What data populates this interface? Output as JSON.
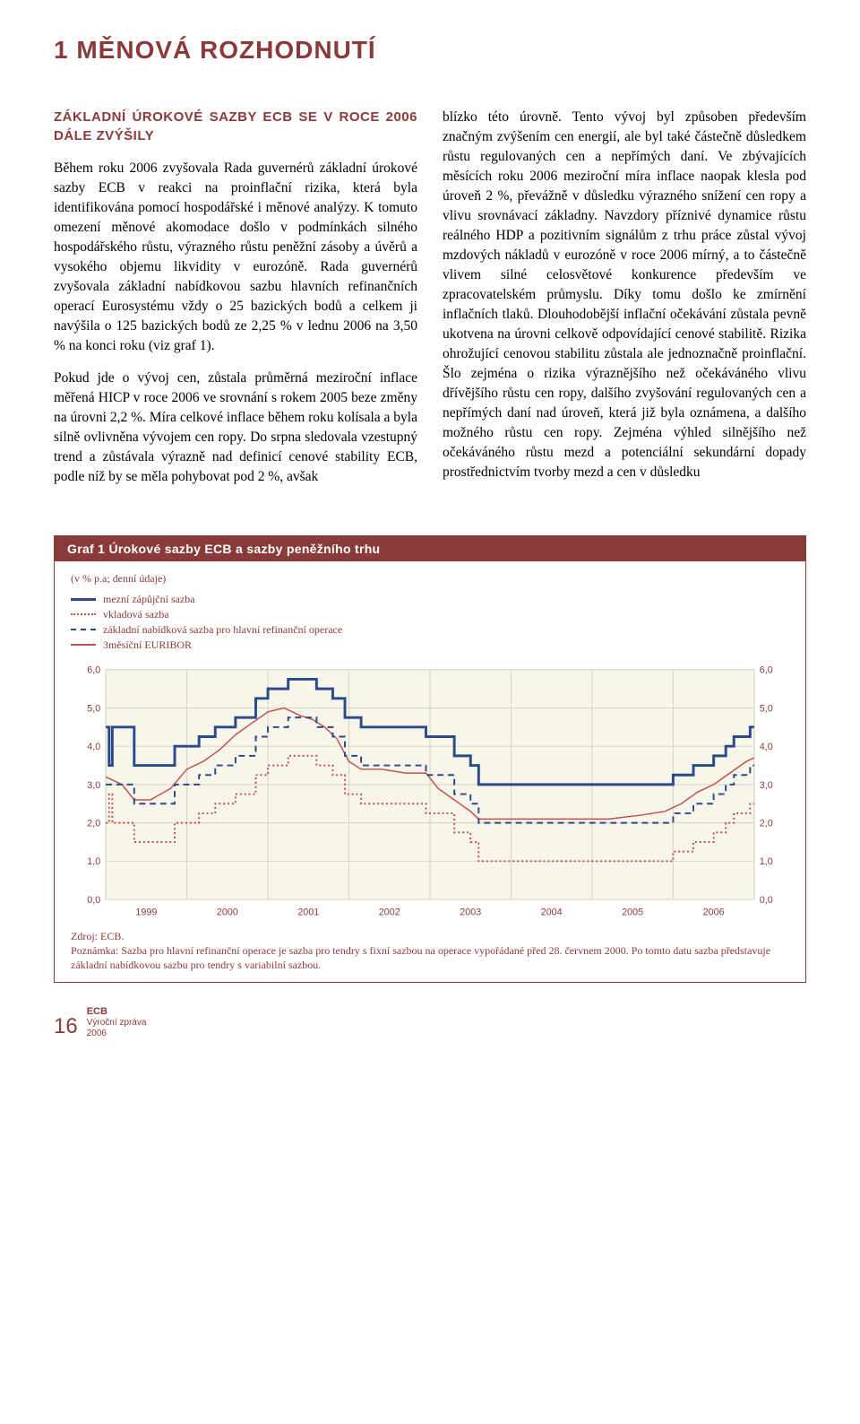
{
  "chapter": {
    "title": "1  MĚNOVÁ ROZHODNUTÍ"
  },
  "subhead": "ZÁKLADNÍ ÚROKOVÉ SAZBY ECB SE V ROCE 2006 DÁLE ZVÝŠILY",
  "col1": {
    "p1": "Během roku 2006 zvyšovala Rada guvernérů základní úrokové sazby ECB v reakci na proinflační rizika, která byla identifikována pomocí hospodářské i měnové analýzy. K tomuto omezení měnové akomodace došlo v podmínkách silného hospodářského růstu, výrazného růstu peněžní zásoby a úvěrů a vysokého objemu likvidity v eurozóně. Rada guvernérů zvyšovala základní nabídkovou sazbu hlavních refinančních operací Eurosystému vždy o 25 bazických bodů a celkem ji navýšila o 125 bazických bodů ze 2,25 % v lednu 2006 na 3,50 % na konci roku (viz graf 1).",
    "p2": "Pokud jde o vývoj cen, zůstala průměrná meziroční inflace měřená HICP v roce 2006 ve srovnání s rokem 2005 beze změny na úrovni 2,2 %. Míra celkové inflace během roku kolísala a byla silně ovlivněna vývojem cen ropy. Do srpna sledovala vzestupný trend a zůstávala výrazně nad definicí cenové stability ECB, podle níž by se měla pohybovat pod 2 %, avšak"
  },
  "col2": {
    "p1": "blízko této úrovně. Tento vývoj byl způsoben především značným zvýšením cen energií, ale byl také částečně důsledkem růstu regulovaných cen a nepřímých daní. Ve zbývajících měsících roku 2006 meziroční míra inflace naopak klesla pod úroveň 2 %, převážně v důsledku výrazného snížení cen ropy a vlivu srovnávací základny. Navzdory příznivé dynamice růstu reálného HDP a pozitivním signálům z trhu práce zůstal vývoj mzdových nákladů v eurozóně v roce 2006 mírný, a to částečně vlivem silné celosvětové konkurence především ve zpracovatelském průmyslu. Díky tomu došlo ke zmírnění inflačních tlaků. Dlouhodobější inflační očekávání zůstala pevně ukotvena na úrovni celkově odpovídající cenové stabilitě. Rizika ohrožující cenovou stabilitu zůstala ale jednoznačně proinflační. Šlo zejména o rizika výraznějšího než očekáváného vlivu dřívějšího růstu cen ropy, dalšího zvyšování regulovaných cen a nepřímých daní nad úroveň, která již byla oznámena, a dalšího možného růstu cen ropy. Zejména výhled silnějšího než očekáváného růstu mezd a potenciální sekundární dopady prostřednictvím tvorby mezd a cen v důsledku"
  },
  "chart": {
    "title": "Graf 1 Úrokové sazby ECB a sazby peněžního trhu",
    "units": "(v % p.a; denní údaje)",
    "legend": [
      {
        "label": "mezní zápůjční sazba",
        "style": "solid-thick",
        "color": "#2a4a8a"
      },
      {
        "label": "vkladová sazba",
        "style": "dotted",
        "color": "#c0504d"
      },
      {
        "label": "základní nabídková sazba pro hlavní refinanční operace",
        "style": "dashed",
        "color": "#2a4a8a"
      },
      {
        "label": "3měsíční EURIBOR",
        "style": "solid-thin",
        "color": "#c0504d"
      }
    ],
    "y_axis": {
      "min": 0.0,
      "max": 6.0,
      "step": 1.0,
      "labels": [
        "0,0",
        "1,0",
        "2,0",
        "3,0",
        "4,0",
        "5,0",
        "6,0"
      ]
    },
    "x_axis": {
      "labels": [
        "1999",
        "2000",
        "2001",
        "2002",
        "2003",
        "2004",
        "2005",
        "2006"
      ]
    },
    "background_color": "#f8f5ea",
    "grid_color": "#d8d4c0",
    "series": {
      "marginal_lending": {
        "color": "#2a4a8a",
        "style": "solid",
        "width": 3,
        "points": [
          [
            0.0,
            4.5
          ],
          [
            0.04,
            3.5
          ],
          [
            0.08,
            4.5
          ],
          [
            0.35,
            3.5
          ],
          [
            0.85,
            4.0
          ],
          [
            1.15,
            4.25
          ],
          [
            1.35,
            4.5
          ],
          [
            1.6,
            4.75
          ],
          [
            1.85,
            5.25
          ],
          [
            2.0,
            5.5
          ],
          [
            2.25,
            5.75
          ],
          [
            2.55,
            5.75
          ],
          [
            2.6,
            5.5
          ],
          [
            2.75,
            5.5
          ],
          [
            2.8,
            5.25
          ],
          [
            2.95,
            4.75
          ],
          [
            3.15,
            4.5
          ],
          [
            3.95,
            4.25
          ],
          [
            4.3,
            3.75
          ],
          [
            4.5,
            3.5
          ],
          [
            4.6,
            3.0
          ],
          [
            5.0,
            3.0
          ],
          [
            7.0,
            3.25
          ],
          [
            7.25,
            3.5
          ],
          [
            7.5,
            3.75
          ],
          [
            7.65,
            4.0
          ],
          [
            7.75,
            4.25
          ],
          [
            7.95,
            4.5
          ],
          [
            8.0,
            4.5
          ]
        ]
      },
      "deposit": {
        "color": "#c0504d",
        "style": "dotted",
        "width": 2,
        "points": [
          [
            0.0,
            2.0
          ],
          [
            0.04,
            2.75
          ],
          [
            0.08,
            2.0
          ],
          [
            0.35,
            1.5
          ],
          [
            0.85,
            2.0
          ],
          [
            1.15,
            2.25
          ],
          [
            1.35,
            2.5
          ],
          [
            1.6,
            2.75
          ],
          [
            1.85,
            3.25
          ],
          [
            2.0,
            3.5
          ],
          [
            2.25,
            3.75
          ],
          [
            2.55,
            3.75
          ],
          [
            2.6,
            3.5
          ],
          [
            2.75,
            3.5
          ],
          [
            2.8,
            3.25
          ],
          [
            2.95,
            2.75
          ],
          [
            3.15,
            2.5
          ],
          [
            3.95,
            2.25
          ],
          [
            4.3,
            1.75
          ],
          [
            4.5,
            1.5
          ],
          [
            4.6,
            1.0
          ],
          [
            5.0,
            1.0
          ],
          [
            7.0,
            1.25
          ],
          [
            7.25,
            1.5
          ],
          [
            7.5,
            1.75
          ],
          [
            7.65,
            2.0
          ],
          [
            7.75,
            2.25
          ],
          [
            7.95,
            2.5
          ],
          [
            8.0,
            2.5
          ]
        ]
      },
      "main_refi": {
        "color": "#2a4a8a",
        "style": "dashed",
        "width": 2,
        "points": [
          [
            0.0,
            3.0
          ],
          [
            0.35,
            2.5
          ],
          [
            0.85,
            3.0
          ],
          [
            1.15,
            3.25
          ],
          [
            1.35,
            3.5
          ],
          [
            1.6,
            3.75
          ],
          [
            1.85,
            4.25
          ],
          [
            2.0,
            4.5
          ],
          [
            2.25,
            4.75
          ],
          [
            2.55,
            4.75
          ],
          [
            2.6,
            4.5
          ],
          [
            2.75,
            4.5
          ],
          [
            2.8,
            4.25
          ],
          [
            2.95,
            3.75
          ],
          [
            3.15,
            3.5
          ],
          [
            3.95,
            3.25
          ],
          [
            4.3,
            2.75
          ],
          [
            4.5,
            2.5
          ],
          [
            4.6,
            2.0
          ],
          [
            5.0,
            2.0
          ],
          [
            7.0,
            2.25
          ],
          [
            7.25,
            2.5
          ],
          [
            7.5,
            2.75
          ],
          [
            7.65,
            3.0
          ],
          [
            7.75,
            3.25
          ],
          [
            7.95,
            3.5
          ],
          [
            8.0,
            3.5
          ]
        ]
      },
      "euribor": {
        "color": "#c0504d",
        "style": "solid",
        "width": 1.5,
        "points": [
          [
            0.0,
            3.2
          ],
          [
            0.2,
            3.0
          ],
          [
            0.35,
            2.6
          ],
          [
            0.55,
            2.6
          ],
          [
            0.8,
            2.9
          ],
          [
            1.0,
            3.4
          ],
          [
            1.2,
            3.6
          ],
          [
            1.4,
            3.9
          ],
          [
            1.6,
            4.3
          ],
          [
            1.8,
            4.6
          ],
          [
            2.0,
            4.9
          ],
          [
            2.2,
            5.0
          ],
          [
            2.4,
            4.8
          ],
          [
            2.55,
            4.7
          ],
          [
            2.7,
            4.5
          ],
          [
            2.85,
            4.2
          ],
          [
            3.0,
            3.6
          ],
          [
            3.15,
            3.4
          ],
          [
            3.4,
            3.4
          ],
          [
            3.7,
            3.3
          ],
          [
            3.95,
            3.3
          ],
          [
            4.1,
            2.9
          ],
          [
            4.3,
            2.6
          ],
          [
            4.5,
            2.3
          ],
          [
            4.6,
            2.1
          ],
          [
            5.0,
            2.1
          ],
          [
            5.4,
            2.1
          ],
          [
            5.8,
            2.1
          ],
          [
            6.2,
            2.1
          ],
          [
            6.6,
            2.2
          ],
          [
            6.9,
            2.3
          ],
          [
            7.1,
            2.5
          ],
          [
            7.3,
            2.8
          ],
          [
            7.5,
            3.0
          ],
          [
            7.7,
            3.3
          ],
          [
            7.9,
            3.6
          ],
          [
            8.0,
            3.7
          ]
        ]
      }
    },
    "source": "Zdroj: ECB.",
    "note": "Poznámka: Sazba pro hlavní refinanční operace je sazba pro tendry s fixní sazbou na operace vypořádané před 28. červnem 2000. Po tomto datu sazba představuje základní nabídkovou sazbu pro tendry s variabilní sazbou."
  },
  "footer": {
    "page_num": "16",
    "ecb": "ECB",
    "line1": "Výroční zpráva",
    "line2": "2006"
  }
}
